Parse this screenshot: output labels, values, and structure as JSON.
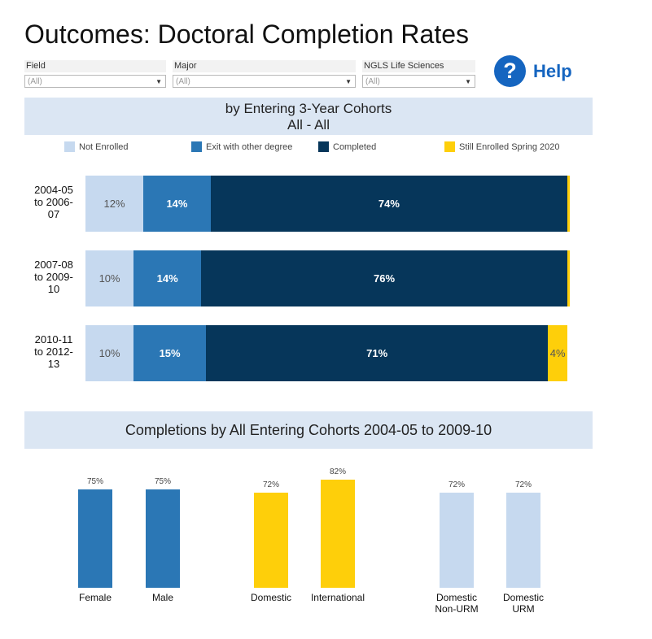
{
  "page": {
    "title": "Outcomes: Doctoral Completion Rates"
  },
  "filters": [
    {
      "label": "Field",
      "value": "(All)"
    },
    {
      "label": "Major",
      "value": "(All)"
    },
    {
      "label": "NGLS Life Sciences",
      "value": "(All)"
    }
  ],
  "help": {
    "icon": "question-icon",
    "glyph": "?",
    "label": "Help"
  },
  "colors": {
    "not_enrolled": "#c6d9ef",
    "exit_other": "#2b77b5",
    "completed": "#06365a",
    "still_enrolled": "#fecf0a"
  },
  "chart_data": [
    {
      "type": "bar",
      "orientation": "horizontal",
      "stacked": true,
      "title": "by Entering 3-Year Cohorts",
      "subtitle": "All - All",
      "legend_position": "top",
      "categories": [
        "2004-05 to 2006-07",
        "2007-08 to 2009-10",
        "2010-11 to 2012-13"
      ],
      "series": [
        {
          "name": "Not Enrolled",
          "values": [
            12,
            10,
            10
          ],
          "labels": [
            "12%",
            "10%",
            "10%"
          ]
        },
        {
          "name": "Exit with other degree",
          "values": [
            14,
            14,
            15
          ],
          "labels": [
            "14%",
            "14%",
            "15%"
          ]
        },
        {
          "name": "Completed",
          "values": [
            74,
            76,
            71
          ],
          "labels": [
            "74%",
            "76%",
            "71%"
          ]
        },
        {
          "name": "Still Enrolled Spring 2020",
          "values": [
            0.5,
            0.5,
            4
          ],
          "labels": [
            "",
            "",
            "4%"
          ]
        }
      ]
    },
    {
      "type": "bar",
      "title": "Completions by All Entering Cohorts 2004-05 to 2009-10",
      "ylim": [
        0,
        100
      ],
      "groups": [
        {
          "categories": [
            "Female",
            "Male"
          ],
          "values": [
            75,
            75
          ],
          "labels": [
            "75%",
            "75%"
          ],
          "color": "#2b77b5"
        },
        {
          "categories": [
            "Domestic",
            "International"
          ],
          "values": [
            72,
            82
          ],
          "labels": [
            "72%",
            "82%"
          ],
          "color": "#fecf0a"
        },
        {
          "categories": [
            "Domestic Non-URM",
            "Domestic URM"
          ],
          "values": [
            72,
            72
          ],
          "labels": [
            "72%",
            "72%"
          ],
          "color": "#c6d9ef"
        }
      ]
    }
  ]
}
